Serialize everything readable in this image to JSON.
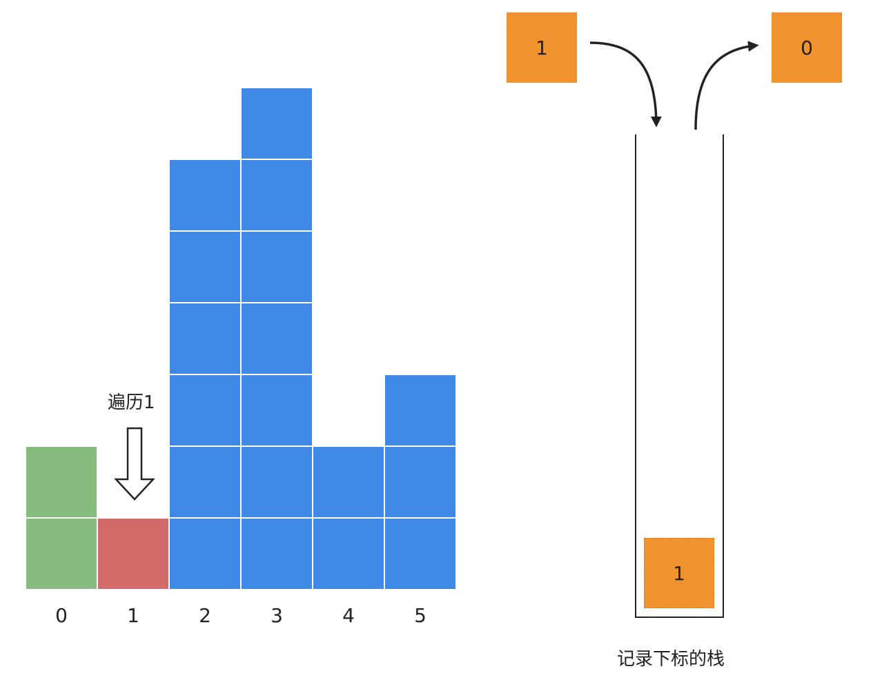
{
  "chart_data": {
    "type": "bar",
    "categories": [
      "0",
      "1",
      "2",
      "3",
      "4",
      "5"
    ],
    "values": [
      2,
      1,
      6,
      7,
      2,
      3
    ],
    "bar_colors": [
      "#86BC7E",
      "#D26C6A",
      "#3F88E6",
      "#3F88E6",
      "#3F88E6",
      "#3F88E6"
    ]
  },
  "traverse_label": "遍历1",
  "push_box": {
    "value": "1"
  },
  "pop_box": {
    "value": "0"
  },
  "stack": {
    "items": [
      "1"
    ],
    "caption": "记录下标的栈"
  },
  "colors": {
    "green": "#86BC7E",
    "red": "#D26C6A",
    "blue": "#3F88E6",
    "orange": "#F0932F"
  }
}
